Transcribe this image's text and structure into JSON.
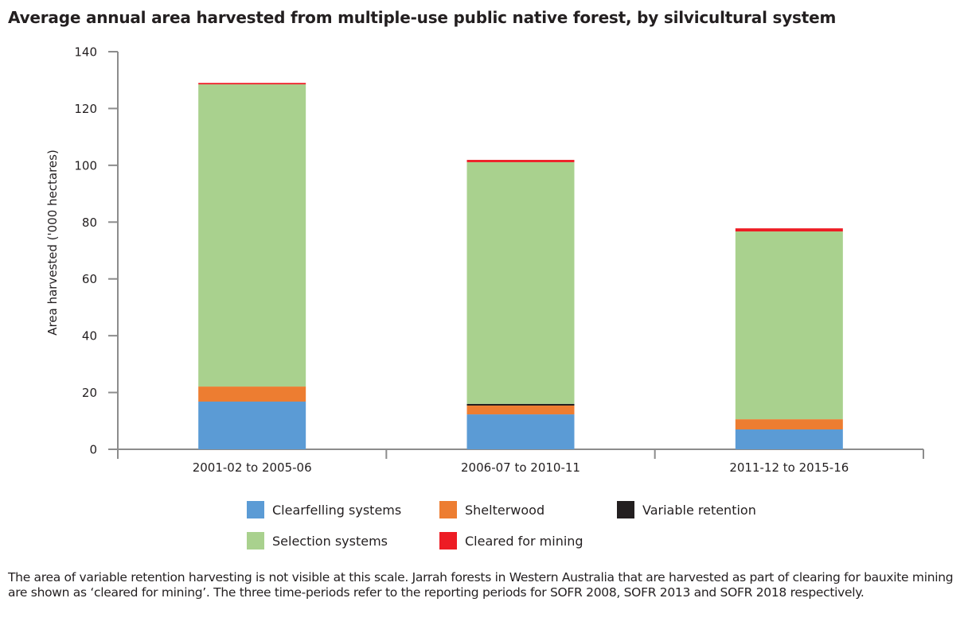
{
  "title": "Average annual area harvested from multiple-use public native forest, by silvicultural system",
  "chart_data": {
    "type": "bar",
    "stacked": true,
    "title": "Average annual area harvested from multiple-use public native forest, by silvicultural system",
    "xlabel": "",
    "ylabel": "Area harvested ('000 hectares)",
    "ylim": [
      0,
      140
    ],
    "yticks": [
      "0",
      "20",
      "40",
      "60",
      "80",
      "100",
      "120",
      "140"
    ],
    "grid": false,
    "categories": [
      "2001-02 to 2005-06",
      "2006-07 to 2010-11",
      "2011-12 to 2015-16"
    ],
    "series": [
      {
        "name": "Clearfelling systems",
        "color": "#5b9bd5",
        "values": [
          16.8,
          12.3,
          7.0
        ]
      },
      {
        "name": "Shelterwood",
        "color": "#ed7d31",
        "values": [
          5.3,
          3.1,
          3.6
        ]
      },
      {
        "name": "Variable retention",
        "color": "#231f20",
        "values": [
          0.0,
          0.6,
          0.0
        ]
      },
      {
        "name": "Selection systems",
        "color": "#a9d18e",
        "values": [
          106.4,
          85.1,
          66.1
        ]
      },
      {
        "name": "Cleared for mining",
        "color": "#ed1c24",
        "values": [
          0.5,
          0.8,
          1.1
        ]
      }
    ],
    "legend_position": "bottom"
  },
  "legend": [
    {
      "label": "Clearfelling systems",
      "color": "#5b9bd5"
    },
    {
      "label": "Shelterwood",
      "color": "#ed7d31"
    },
    {
      "label": "Variable retention",
      "color": "#231f20"
    },
    {
      "label": "Selection systems",
      "color": "#a9d18e"
    },
    {
      "label": "Cleared for mining",
      "color": "#ed1c24"
    }
  ],
  "note": "The area of variable retention harvesting is not visible at this scale. Jarrah forests in Western Australia that are harvested as part of clearing for bauxite mining are shown as ‘cleared for mining’. The three time-periods refer to the reporting periods for SOFR 2008, SOFR 2013 and SOFR 2018 respectively."
}
